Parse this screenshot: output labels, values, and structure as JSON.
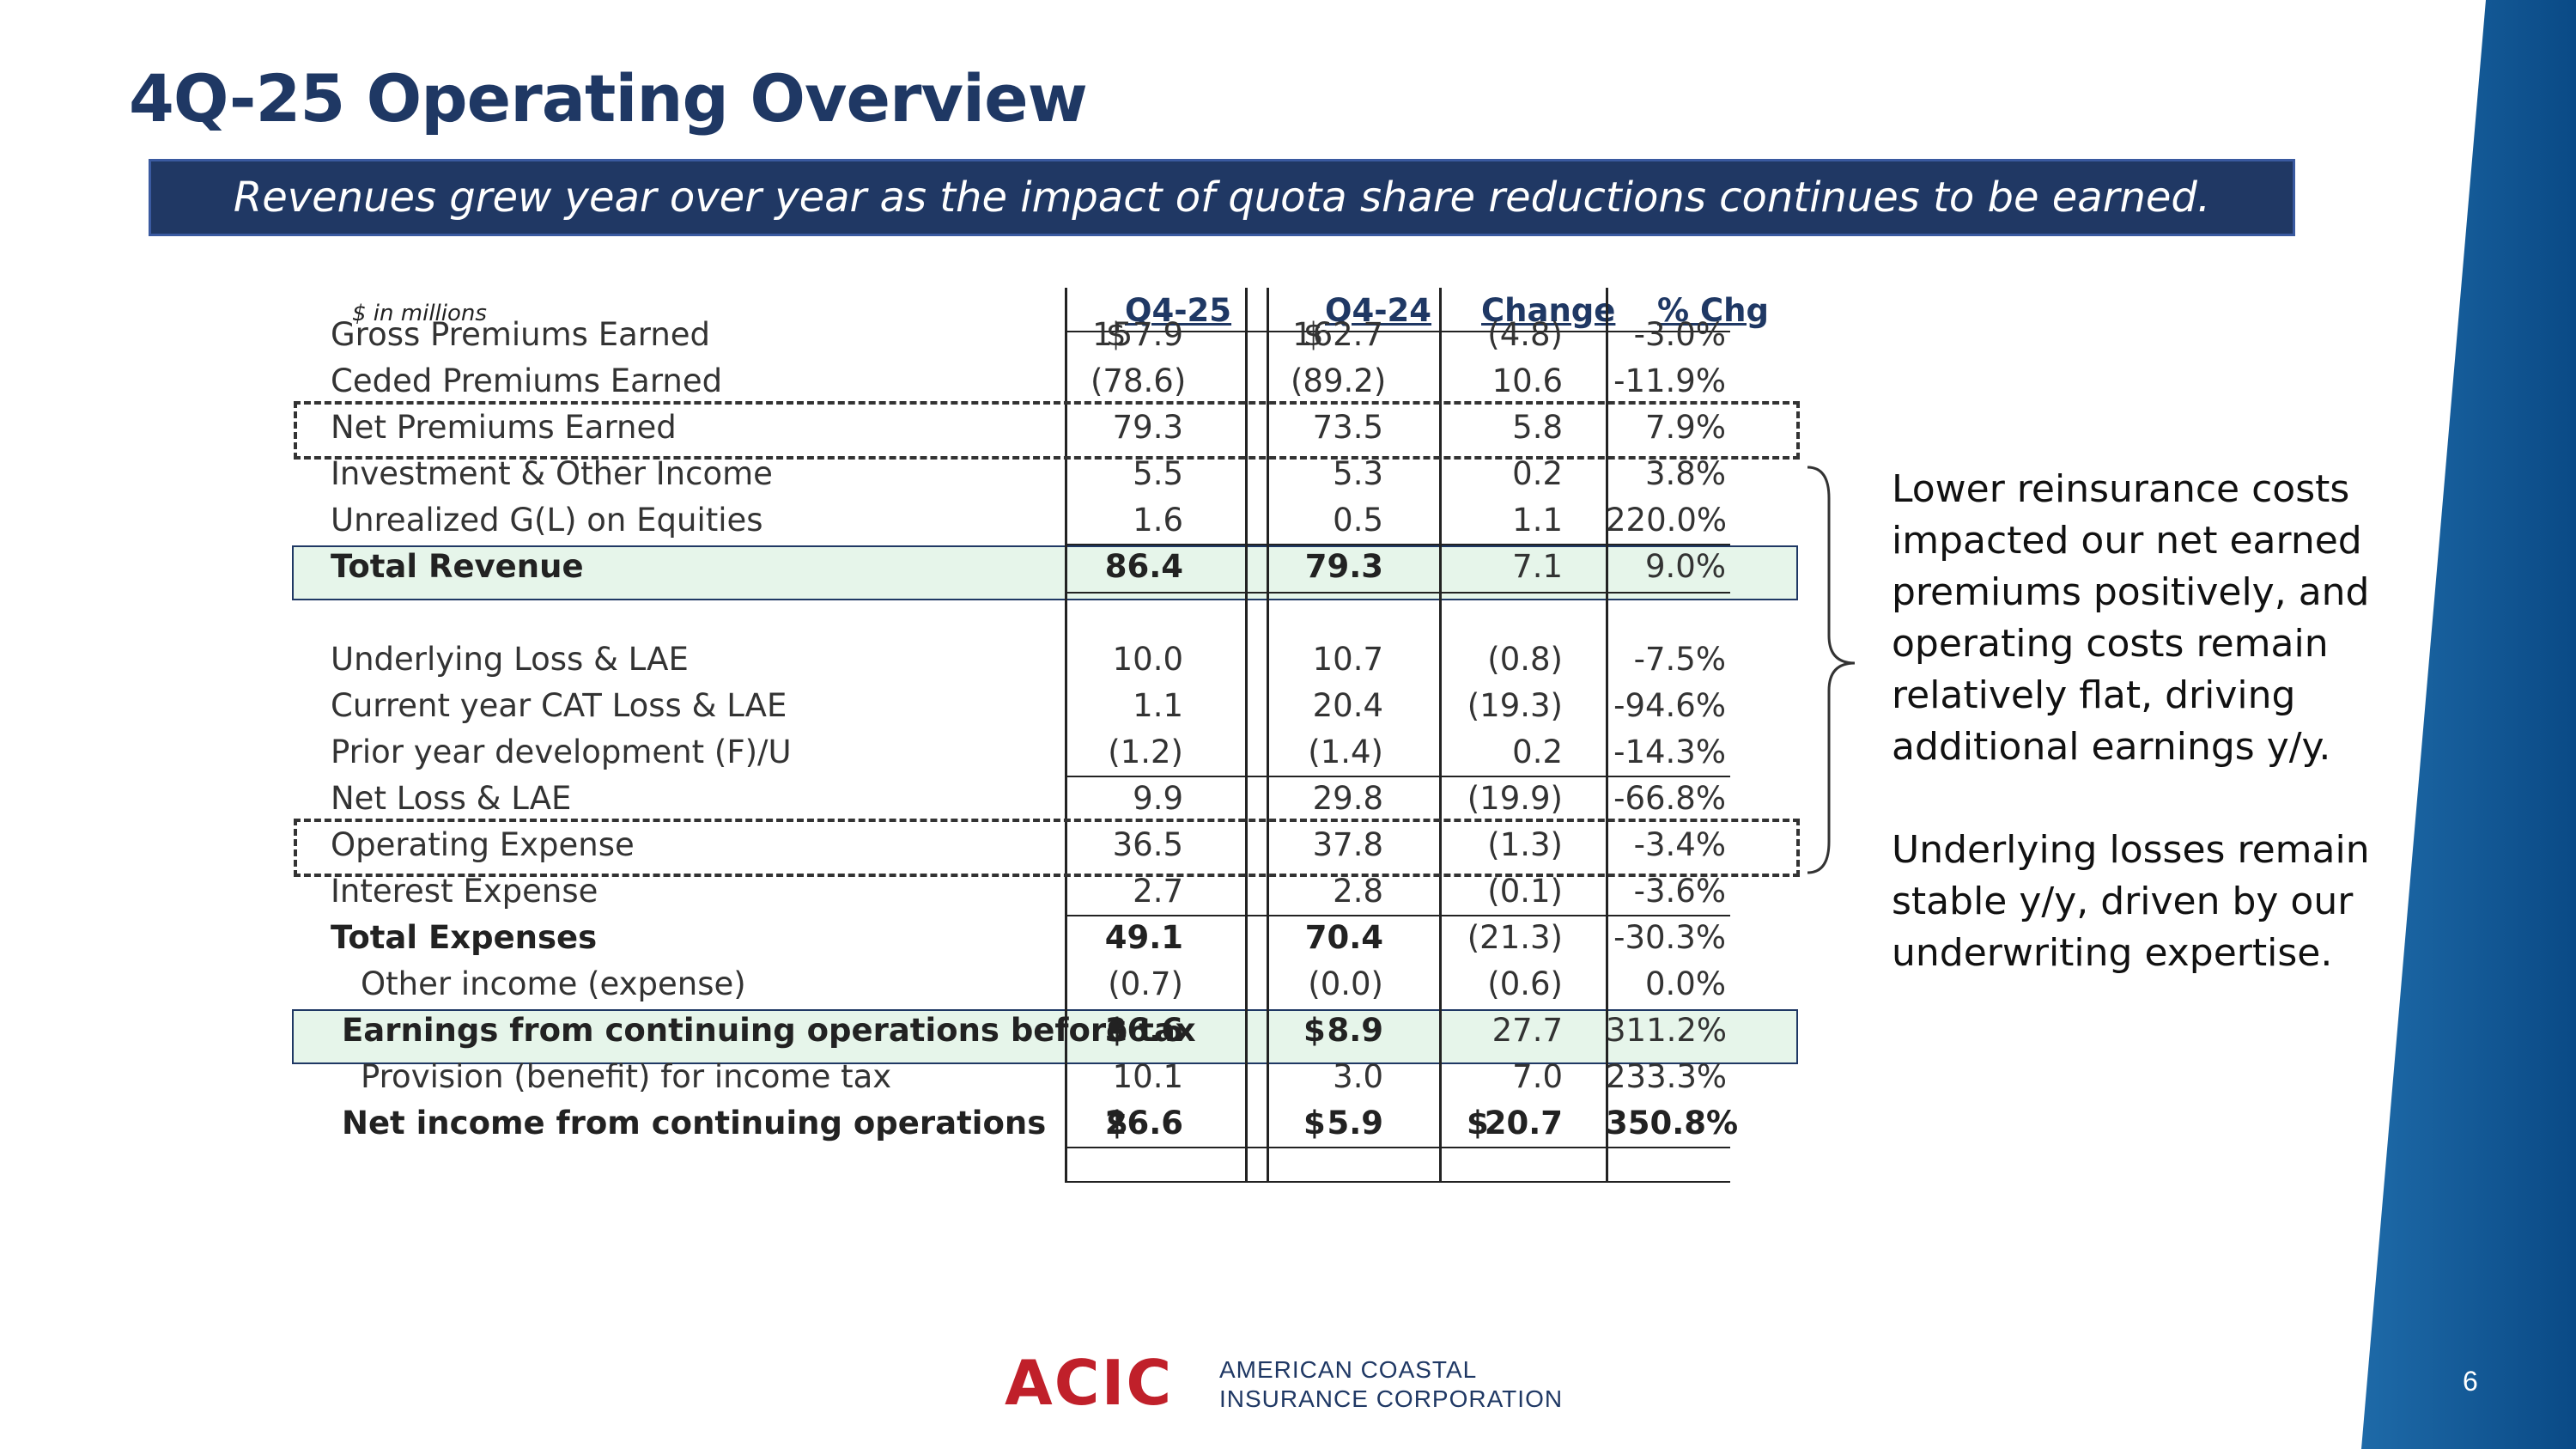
{
  "slide": {
    "title": "4Q-25 Operating Overview",
    "banner": "Revenues grew year over year as the impact of quota share reductions continues to be earned.",
    "page_number": "6"
  },
  "table": {
    "units": "$ in millions",
    "headers": [
      "Q4-25",
      "Q4-24",
      "Change",
      "% Chg"
    ],
    "rows": [
      {
        "label": "Gross Premiums Earned",
        "q425": "157.9",
        "q424": "162.7",
        "chg": "(4.8)",
        "pct": "-3.0%",
        "dollar": true
      },
      {
        "label": "Ceded Premiums Earned",
        "q425": "(78.6)",
        "q424": "(89.2)",
        "chg": "10.6",
        "pct": "-11.9%"
      },
      {
        "label": "Net Premiums Earned",
        "q425": "79.3",
        "q424": "73.5",
        "chg": "5.8",
        "pct": "7.9%"
      },
      {
        "label": "Investment & Other Income",
        "q425": "5.5",
        "q424": "5.3",
        "chg": "0.2",
        "pct": "3.8%"
      },
      {
        "label": "Unrealized G(L) on Equities",
        "q425": "1.6",
        "q424": "0.5",
        "chg": "1.1",
        "pct": "220.0%"
      },
      {
        "label": "Total Revenue",
        "q425": "86.4",
        "q424": "79.3",
        "chg": "7.1",
        "pct": "9.0%"
      },
      {
        "label": "Underlying Loss & LAE",
        "q425": "10.0",
        "q424": "10.7",
        "chg": "(0.8)",
        "pct": "-7.5%"
      },
      {
        "label": "Current year CAT Loss & LAE",
        "q425": "1.1",
        "q424": "20.4",
        "chg": "(19.3)",
        "pct": "-94.6%"
      },
      {
        "label": "Prior year development (F)/U",
        "q425": "(1.2)",
        "q424": "(1.4)",
        "chg": "0.2",
        "pct": "-14.3%"
      },
      {
        "label": "Net Loss & LAE",
        "q425": "9.9",
        "q424": "29.8",
        "chg": "(19.9)",
        "pct": "-66.8%"
      },
      {
        "label": "Operating Expense",
        "q425": "36.5",
        "q424": "37.8",
        "chg": "(1.3)",
        "pct": "-3.4%"
      },
      {
        "label": "Interest Expense",
        "q425": "2.7",
        "q424": "2.8",
        "chg": "(0.1)",
        "pct": "-3.6%"
      },
      {
        "label": "Total Expenses",
        "q425": "49.1",
        "q424": "70.4",
        "chg": "(21.3)",
        "pct": "-30.3%"
      },
      {
        "label": "Other income (expense)",
        "q425": "(0.7)",
        "q424": "(0.0)",
        "chg": "(0.6)",
        "pct": "0.0%"
      },
      {
        "label": "Earnings from continuing operations before tax",
        "q425": "36.6",
        "q424": "8.9",
        "chg": "27.7",
        "pct": "311.2%"
      },
      {
        "label": "Provision (benefit) for income tax",
        "q425": "10.1",
        "q424": "3.0",
        "chg": "7.0",
        "pct": "233.3%"
      },
      {
        "label": "Net income from continuing operations",
        "q425": "26.6",
        "q424": "5.9",
        "chg": "20.7",
        "pct": "350.8%"
      }
    ],
    "dollar_sign": "$"
  },
  "callout": {
    "para1": "Lower reinsurance costs impacted our net earned premiums positively, and operating costs remain relatively flat, driving additional earnings y/y.",
    "para2": "Underlying losses remain stable y/y, driven by our underwriting expertise."
  },
  "logo": {
    "mark": "ACIC",
    "line1": "AMERICAN COASTAL",
    "line2": "INSURANCE CORPORATION"
  },
  "colors": {
    "title": "#1f3864",
    "banner_bg": "#203864",
    "highlight": "#e6f5ea",
    "band": "#0d4f8b",
    "logo_red": "#c0202a"
  }
}
